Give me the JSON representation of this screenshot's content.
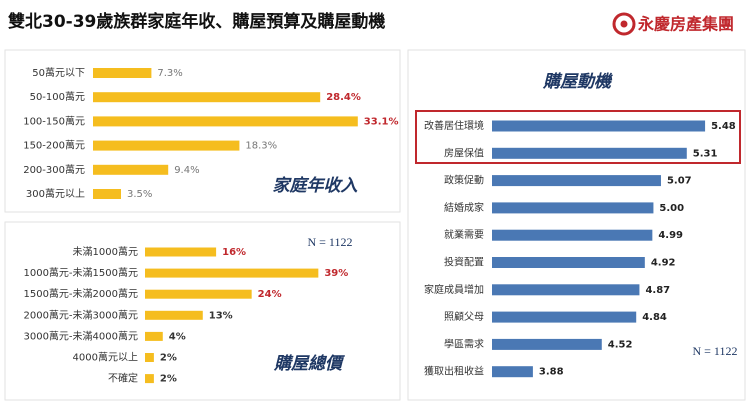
{
  "header": {
    "title": "雙北30-39歲族群家庭年收、購屋預算及購屋動機",
    "logo": "永慶房產集團"
  },
  "chart_data": [
    {
      "type": "hbar",
      "title": "家庭年收入",
      "categories": [
        "50萬元以下",
        "50-100萬元",
        "100-150萬元",
        "150-200萬元",
        "200-300萬元",
        "300萬元以上"
      ],
      "values": [
        7.3,
        28.4,
        33.1,
        18.3,
        9.4,
        3.5
      ],
      "value_labels": [
        "7.3%",
        "28.4%",
        "33.1%",
        "18.3%",
        "9.4%",
        "3.5%"
      ],
      "value_label_colors": [
        "#777777",
        "#c0282d",
        "#c0282d",
        "#777777",
        "#777777",
        "#777777"
      ],
      "color": "#f5bd1f",
      "xlim": [
        0,
        37
      ]
    },
    {
      "type": "hbar",
      "title": "購屋總價",
      "note": "N = 1122",
      "categories": [
        "未滿1000萬元",
        "1000萬元-未滿1500萬元",
        "1500萬元-未滿2000萬元",
        "2000萬元-未滿3000萬元",
        "3000萬元-未滿4000萬元",
        "4000萬元以上",
        "不確定"
      ],
      "values": [
        16,
        39,
        24,
        13,
        4,
        2,
        2
      ],
      "value_labels": [
        "16%",
        "39%",
        "24%",
        "13%",
        "4%",
        "2%",
        "2%"
      ],
      "value_label_colors": [
        "#c0282d",
        "#c0282d",
        "#c0282d",
        "#333333",
        "#333333",
        "#333333",
        "#333333"
      ],
      "bold_labels": true,
      "color": "#f5bd1f",
      "xlim": [
        0,
        45
      ]
    },
    {
      "type": "hbar",
      "title": "購屋動機",
      "note": "N = 1122",
      "categories": [
        "改善居住環境",
        "房屋保值",
        "政策促動",
        "結婚成家",
        "就業需要",
        "投資配置",
        "家庭成員增加",
        "照顧父母",
        "學區需求",
        "獲取出租收益"
      ],
      "values": [
        5.48,
        5.31,
        5.07,
        5.0,
        4.99,
        4.92,
        4.87,
        4.84,
        4.52,
        3.88
      ],
      "value_labels": [
        "5.48",
        "5.31",
        "5.07",
        "5.00",
        "4.99",
        "4.92",
        "4.87",
        "4.84",
        "4.52",
        "3.88"
      ],
      "value_label_colors": [
        "#222222",
        "#222222",
        "#222222",
        "#222222",
        "#222222",
        "#222222",
        "#222222",
        "#222222",
        "#222222",
        "#222222"
      ],
      "bold_labels": true,
      "color": "#4a78b4",
      "xlim": [
        3.5,
        5.6
      ]
    }
  ]
}
